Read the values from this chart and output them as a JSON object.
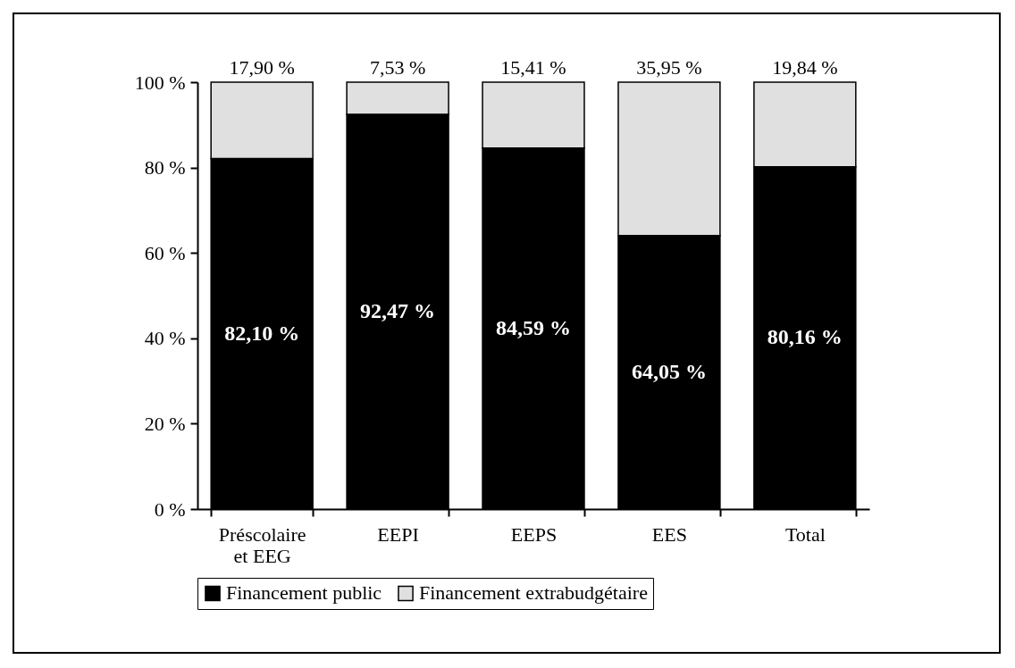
{
  "chart_data": {
    "type": "bar",
    "stacked": true,
    "categories": [
      "Préscolaire et EEG",
      "EEPI",
      "EEPS",
      "EES",
      "Total"
    ],
    "series": [
      {
        "name": "Financement public",
        "color": "#000000",
        "values": [
          82.1,
          92.47,
          84.59,
          64.05,
          80.16
        ],
        "value_labels": [
          "82,10 %",
          "92,47 %",
          "84,59 %",
          "64,05 %",
          "80,16 %"
        ]
      },
      {
        "name": "Financement extrabudgétaire",
        "color": "#e0e0e0",
        "values": [
          17.9,
          7.53,
          15.41,
          35.95,
          19.84
        ],
        "value_labels": [
          "17,90 %",
          "7,53 %",
          "15,41 %",
          "35,95 %",
          "19,84 %"
        ]
      }
    ],
    "ylim": [
      0,
      100
    ],
    "yticks": [
      {
        "value": 0,
        "label": "0 %"
      },
      {
        "value": 20,
        "label": "20 %"
      },
      {
        "value": 40,
        "label": "40 %"
      },
      {
        "value": 60,
        "label": "60 %"
      },
      {
        "value": 80,
        "label": "80 %"
      },
      {
        "value": 100,
        "label": "100 %"
      }
    ],
    "grid": false,
    "legend": "bottom"
  }
}
